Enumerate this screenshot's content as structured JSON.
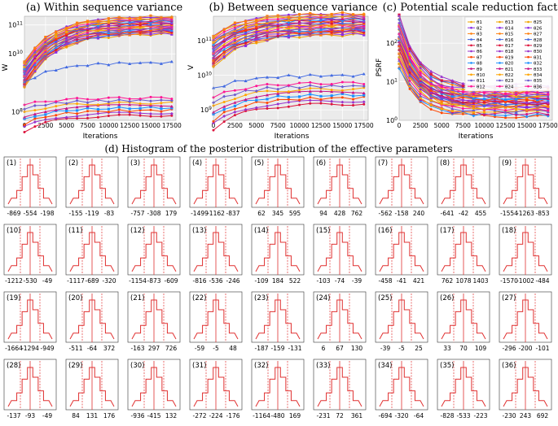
{
  "figure": {
    "hist_title": "(d) Histogram of the posterior distribution of the effective parameters"
  },
  "chart_data": [
    {
      "type": "line",
      "title": "(a) Within sequence variance",
      "xlabel": "Iterations",
      "ylabel": "W",
      "yscale": "log",
      "ylim": [
        50000000,
        200000000000
      ],
      "xlim": [
        0,
        18000
      ],
      "xticks": [
        0,
        2500,
        5000,
        7500,
        10000,
        12500,
        15000,
        17500
      ],
      "xtick_labels": [
        "0",
        "2500",
        "5000",
        "7500",
        "10000",
        "12500",
        "15000",
        "17500"
      ],
      "yticks": [
        100000000,
        10000000000,
        100000000000
      ],
      "ytick_labels": [
        "10^8",
        "10^10",
        "10^11"
      ],
      "note": "36 series (one per effective parameter); representative curves: most rise from ~1e9-1e10 to 5e10-1e11, one ends near 5e9, a lower band stays around 1e8-1.5e8",
      "series_groups": [
        {
          "start": 2000000000,
          "end": 100000000000,
          "count": 27
        },
        {
          "start": 1000000000,
          "end": 5000000000,
          "count": 1
        },
        {
          "start": 60000000,
          "end": 150000000,
          "count": 8
        }
      ]
    },
    {
      "type": "line",
      "title": "(b) Between sequence variance",
      "xlabel": "Iterations",
      "ylabel": "V",
      "yscale": "log",
      "ylim": [
        500000000,
        500000000000
      ],
      "xlim": [
        0,
        18000
      ],
      "xticks": [
        0,
        2500,
        5000,
        7500,
        10000,
        12500,
        15000,
        17500
      ],
      "xtick_labels": [
        "0",
        "2500",
        "5000",
        "7500",
        "10000",
        "12500",
        "15000",
        "17500"
      ],
      "yticks": [
        1000000000,
        10000000000,
        100000000000
      ],
      "ytick_labels": [
        "10^9",
        "10^10",
        "10^11"
      ],
      "series_groups": [
        {
          "start": 50000000000,
          "end": 300000000000,
          "count": 27
        },
        {
          "start": 4000000000,
          "end": 10000000000,
          "count": 1
        },
        {
          "start": 800000000,
          "end": 3000000000,
          "count": 8
        }
      ]
    },
    {
      "type": "line",
      "title": "(c) Potential scale reduction factor",
      "xlabel": "Iterations",
      "ylabel": "PSRF",
      "yscale": "log",
      "ylim": [
        1,
        500
      ],
      "xlim": [
        0,
        18000
      ],
      "xticks": [
        0,
        2500,
        5000,
        7500,
        10000,
        12500,
        15000,
        17500
      ],
      "xtick_labels": [
        "0",
        "2500",
        "5000",
        "7500",
        "10000",
        "12500",
        "15000",
        "17500"
      ],
      "yticks": [
        1,
        10,
        100
      ],
      "ytick_labels": [
        "10^0",
        "10^1",
        "10^2"
      ],
      "legend": [
        "θ1",
        "θ2",
        "θ3",
        "θ4",
        "θ5",
        "θ6",
        "θ7",
        "θ8",
        "θ9",
        "θ10",
        "θ11",
        "θ12",
        "θ13",
        "θ14",
        "θ15",
        "θ16",
        "θ17",
        "θ18",
        "θ19",
        "θ20",
        "θ21",
        "θ22",
        "θ23",
        "θ24",
        "θ25",
        "θ26",
        "θ27",
        "θ28",
        "θ29",
        "θ30",
        "θ31",
        "θ32",
        "θ33",
        "θ34",
        "θ35",
        "θ36"
      ],
      "legend_position": "top-right",
      "series_groups": [
        {
          "start": 200,
          "end": 4,
          "count": 18
        },
        {
          "start": 60,
          "end": 2.5,
          "count": 18
        }
      ]
    },
    {
      "type": "histogram",
      "title": "(d) Histogram of the posterior distribution of the effective parameters",
      "panels": [
        {
          "label": "(1)",
          "ticks": [
            "-869",
            "-554",
            "-198"
          ]
        },
        {
          "label": "(2)",
          "ticks": [
            "-155",
            "-119",
            "-83"
          ]
        },
        {
          "label": "(3)",
          "ticks": [
            "-757",
            "-308",
            "179"
          ]
        },
        {
          "label": "(4)",
          "ticks": [
            "-1499",
            "-1162",
            "-837"
          ]
        },
        {
          "label": "(5)",
          "ticks": [
            "62",
            "345",
            "595"
          ]
        },
        {
          "label": "(6)",
          "ticks": [
            "94",
            "428",
            "762"
          ]
        },
        {
          "label": "(7)",
          "ticks": [
            "-562",
            "-158",
            "240"
          ]
        },
        {
          "label": "(8)",
          "ticks": [
            "-641",
            "-42",
            "455"
          ]
        },
        {
          "label": "(9)",
          "ticks": [
            "-1554",
            "-1263",
            "-853"
          ]
        },
        {
          "label": "(10)",
          "ticks": [
            "-1212",
            "-530",
            "-49"
          ]
        },
        {
          "label": "(11)",
          "ticks": [
            "-1117",
            "-689",
            "-320"
          ]
        },
        {
          "label": "(12)",
          "ticks": [
            "-1154",
            "-873",
            "-609"
          ]
        },
        {
          "label": "(13)",
          "ticks": [
            "-816",
            "-536",
            "-246"
          ]
        },
        {
          "label": "(14)",
          "ticks": [
            "-109",
            "184",
            "522"
          ]
        },
        {
          "label": "(15)",
          "ticks": [
            "-103",
            "-74",
            "-39"
          ]
        },
        {
          "label": "(16)",
          "ticks": [
            "-458",
            "-41",
            "421"
          ]
        },
        {
          "label": "(17)",
          "ticks": [
            "762",
            "1078",
            "1403"
          ]
        },
        {
          "label": "(18)",
          "ticks": [
            "-1570",
            "-1002",
            "-484"
          ]
        },
        {
          "label": "(19)",
          "ticks": [
            "-1664",
            "-1294",
            "-949"
          ]
        },
        {
          "label": "(20)",
          "ticks": [
            "-511",
            "-64",
            "372"
          ]
        },
        {
          "label": "(21)",
          "ticks": [
            "-163",
            "297",
            "726"
          ]
        },
        {
          "label": "(22)",
          "ticks": [
            "-59",
            "-5",
            "48"
          ]
        },
        {
          "label": "(23)",
          "ticks": [
            "-187",
            "-159",
            "-131"
          ]
        },
        {
          "label": "(24)",
          "ticks": [
            "6",
            "67",
            "130"
          ]
        },
        {
          "label": "(25)",
          "ticks": [
            "-39",
            "-5",
            "25"
          ]
        },
        {
          "label": "(26)",
          "ticks": [
            "33",
            "70",
            "109"
          ]
        },
        {
          "label": "(27)",
          "ticks": [
            "-296",
            "-200",
            "-101"
          ]
        },
        {
          "label": "(28)",
          "ticks": [
            "-137",
            "-93",
            "-49"
          ]
        },
        {
          "label": "(29)",
          "ticks": [
            "84",
            "131",
            "176"
          ]
        },
        {
          "label": "(30)",
          "ticks": [
            "-936",
            "-415",
            "132"
          ]
        },
        {
          "label": "(31)",
          "ticks": [
            "-272",
            "-224",
            "-176"
          ]
        },
        {
          "label": "(32)",
          "ticks": [
            "-1164",
            "-480",
            "169"
          ]
        },
        {
          "label": "(33)",
          "ticks": [
            "-231",
            "72",
            "361"
          ]
        },
        {
          "label": "(34)",
          "ticks": [
            "-694",
            "-320",
            "-64"
          ]
        },
        {
          "label": "(35)",
          "ticks": [
            "-828",
            "-533",
            "-223"
          ]
        },
        {
          "label": "(36)",
          "ticks": [
            "-230",
            "243",
            "692"
          ]
        }
      ]
    }
  ],
  "colors": {
    "line_palette": [
      "#f0a500",
      "#8a2be2",
      "#ff7f0e",
      "#4169e1",
      "#dc143c",
      "#9932cc",
      "#ff4500",
      "#1e90ff",
      "#c71585",
      "#ffa500",
      "#6a5acd",
      "#ff1493"
    ],
    "hist": "#e03030",
    "plot_bg": "#ebebeb"
  }
}
